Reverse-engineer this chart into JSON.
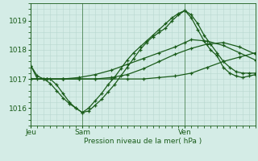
{
  "bg_color": "#d4ece6",
  "grid_color": "#b8d8d0",
  "line_color": "#1a5c1a",
  "text_color": "#1a5c1a",
  "xlabel": "Pression niveau de la mer( hPa )",
  "xtick_labels": [
    "Jeu",
    "Sam",
    "Ven"
  ],
  "ytick_labels": [
    "1016",
    "1017",
    "1018",
    "1019"
  ],
  "ytick_values": [
    1016,
    1017,
    1018,
    1019
  ],
  "ylim": [
    1015.4,
    1019.6
  ],
  "series": [
    {
      "x": [
        0,
        2,
        4,
        6,
        8,
        10,
        12,
        14,
        16,
        18,
        20,
        22,
        24,
        26,
        28,
        30,
        32,
        34,
        36,
        38,
        40,
        42,
        44,
        46,
        48,
        50,
        52,
        54,
        56,
        58,
        60,
        62,
        64,
        66,
        68,
        70
      ],
      "y": [
        1017.45,
        1017.0,
        1017.0,
        1017.0,
        1016.8,
        1016.5,
        1016.2,
        1016.0,
        1015.85,
        1015.9,
        1016.1,
        1016.3,
        1016.55,
        1016.8,
        1017.1,
        1017.4,
        1017.7,
        1018.0,
        1018.25,
        1018.45,
        1018.6,
        1018.75,
        1019.0,
        1019.2,
        1019.35,
        1019.1,
        1018.7,
        1018.3,
        1018.0,
        1017.8,
        1017.4,
        1017.2,
        1017.1,
        1017.05,
        1017.1,
        1017.15
      ]
    },
    {
      "x": [
        0,
        5,
        10,
        15,
        20,
        25,
        30,
        35,
        40,
        45,
        50,
        55,
        60,
        65,
        70
      ],
      "y": [
        1017.0,
        1017.0,
        1017.0,
        1017.0,
        1017.0,
        1017.0,
        1017.0,
        1017.0,
        1017.05,
        1017.1,
        1017.2,
        1017.4,
        1017.6,
        1017.75,
        1017.9
      ]
    },
    {
      "x": [
        0,
        5,
        10,
        15,
        20,
        25,
        30,
        35,
        40,
        45,
        48,
        50,
        55,
        60,
        65,
        70
      ],
      "y": [
        1017.0,
        1017.0,
        1017.0,
        1017.05,
        1017.15,
        1017.3,
        1017.5,
        1017.7,
        1017.9,
        1018.1,
        1018.25,
        1018.35,
        1018.3,
        1018.15,
        1017.9,
        1017.65
      ]
    },
    {
      "x": [
        0,
        5,
        10,
        15,
        20,
        25,
        30,
        35,
        40,
        45,
        50,
        55,
        60,
        65,
        70
      ],
      "y": [
        1017.0,
        1017.0,
        1017.0,
        1017.0,
        1017.0,
        1017.05,
        1017.15,
        1017.35,
        1017.6,
        1017.85,
        1018.05,
        1018.2,
        1018.25,
        1018.1,
        1017.85
      ]
    },
    {
      "x": [
        0,
        2,
        4,
        6,
        8,
        10,
        12,
        14,
        16,
        18,
        20,
        22,
        24,
        26,
        28,
        30,
        32,
        34,
        36,
        38,
        40,
        42,
        44,
        46,
        48,
        50,
        52,
        54,
        56,
        58,
        60,
        62,
        64,
        66,
        68,
        70
      ],
      "y": [
        1017.45,
        1017.1,
        1017.0,
        1016.85,
        1016.6,
        1016.35,
        1016.15,
        1016.0,
        1015.85,
        1016.0,
        1016.25,
        1016.5,
        1016.8,
        1017.05,
        1017.35,
        1017.65,
        1017.9,
        1018.1,
        1018.3,
        1018.5,
        1018.7,
        1018.9,
        1019.1,
        1019.25,
        1019.35,
        1019.2,
        1018.9,
        1018.5,
        1018.2,
        1017.9,
        1017.6,
        1017.4,
        1017.25,
        1017.2,
        1017.2,
        1017.2
      ]
    }
  ]
}
